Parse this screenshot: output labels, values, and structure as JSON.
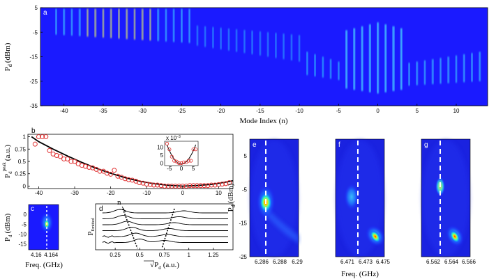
{
  "chart_data": [
    {
      "panel": "a",
      "type": "heatmap",
      "xlabel": "Mode Index (n)",
      "ylabel_main": "P",
      "ylabel_sub": "d",
      "ylabel_unit": "(dBm)",
      "xticks": [
        -40,
        -35,
        -30,
        -25,
        -20,
        -15,
        -10,
        -5,
        0,
        5,
        10
      ],
      "yticks": [
        5,
        -5,
        -15,
        -25,
        -35
      ],
      "xlim": [
        -43,
        14
      ],
      "ylim": [
        -35,
        5
      ],
      "background": "#1a1aff"
    },
    {
      "panel": "b",
      "type": "scatter",
      "ylabel_main": "P",
      "ylabel_sub": "d",
      "ylabel_sup": "peak",
      "ylabel_unit": "(a.u.)",
      "xticks": [
        -40,
        -30,
        -20,
        -10,
        0,
        10
      ],
      "yticks": [
        1,
        0.75,
        0.5,
        0.25,
        0
      ],
      "xlim": [
        -43,
        14
      ],
      "ylim": [
        -0.05,
        1.05
      ],
      "points_x": [
        -41,
        -40,
        -39,
        -38,
        -37,
        -36,
        -35,
        -34,
        -33,
        -32,
        -31,
        -30,
        -29,
        -28,
        -27,
        -26,
        -25,
        -24,
        -23,
        -22,
        -21,
        -20,
        -19,
        -18,
        -17,
        -16,
        -15,
        -14,
        -13,
        -12,
        -11,
        -10,
        -9,
        -8,
        -7,
        -6,
        -5,
        -4,
        -3,
        -2,
        -1,
        0,
        1,
        2,
        3,
        4,
        5,
        6,
        7,
        8,
        9,
        10,
        11,
        12,
        13
      ],
      "points_y": [
        0.85,
        1.0,
        1.0,
        1.0,
        0.72,
        0.65,
        0.62,
        0.6,
        0.55,
        0.55,
        0.5,
        0.5,
        0.45,
        0.42,
        0.4,
        0.38,
        0.37,
        0.34,
        0.3,
        0.3,
        0.26,
        0.24,
        0.32,
        0.2,
        0.18,
        0.15,
        0.13,
        0.12,
        0.1,
        0.07,
        0.06,
        0.04,
        0.03,
        0.02,
        0.02,
        0.01,
        0.0,
        0.0,
        0.0,
        0.0,
        0.0,
        0.0,
        0.0,
        0.01,
        0.01,
        0.01,
        0.01,
        0.01,
        0.01,
        0.02,
        0.02,
        0.03,
        0.04,
        0.05,
        0.07
      ],
      "fit_x": [
        -42,
        -40,
        -36,
        -32,
        -28,
        -24,
        -20,
        -16,
        -12,
        -8,
        -4,
        0,
        4,
        8,
        12,
        14
      ],
      "fit_y": [
        1.0,
        0.9,
        0.75,
        0.61,
        0.48,
        0.36,
        0.26,
        0.17,
        0.1,
        0.05,
        0.015,
        0.0,
        0.01,
        0.035,
        0.08,
        0.11
      ],
      "point_color": "#e03030"
    },
    {
      "panel": "b-inset",
      "type": "scatter",
      "sup_label": "x 10",
      "sup_exp": "−3",
      "xticks": [
        -5,
        0,
        5
      ],
      "yticks": [
        10,
        5,
        0
      ],
      "points_x": [
        -6,
        -5,
        -4,
        -3,
        -2,
        -1,
        0,
        1,
        2,
        3,
        4,
        5,
        6
      ],
      "points_y": [
        12.5,
        9,
        4.5,
        2,
        1.5,
        0.5,
        0.5,
        1,
        1,
        2,
        2,
        9,
        9
      ],
      "xlim": [
        -7,
        7
      ],
      "ylim": [
        -1,
        14
      ]
    },
    {
      "panel": "c",
      "type": "heatmap",
      "xlabel": "Freq. (GHz)",
      "ylabel_main": "P",
      "ylabel_sub": "d",
      "ylabel_unit": "(dBm)",
      "xticks": [
        4.16,
        4.164
      ],
      "yticks": [
        0,
        -5,
        -10,
        -15
      ],
      "xlim": [
        4.158,
        4.166
      ],
      "ylim": [
        -18,
        5
      ]
    },
    {
      "panel": "d",
      "type": "line",
      "xlabel_main": "P",
      "xlabel_sub": "d",
      "xlabel_unit": "(a.u.)",
      "ylabel_main": "P",
      "ylabel_sub": "Emitted",
      "annotation": "n",
      "xticks": [
        0.25,
        0.5,
        0.75,
        1,
        1.25
      ],
      "xlim": [
        0.05,
        1.45
      ],
      "series_count": 6
    },
    {
      "panel": "e",
      "type": "heatmap",
      "ylabel_main": "P",
      "ylabel_sub": "d",
      "ylabel_unit": "(dBm)",
      "xticks": [
        6.286,
        6.288,
        6.29
      ],
      "yticks": [
        5,
        -5,
        -15,
        -25
      ],
      "ylim": [
        -25,
        10
      ]
    },
    {
      "panel": "f",
      "type": "heatmap",
      "xlabel": "Freq. (GHz)",
      "xticks": [
        6.471,
        6.473,
        6.475
      ]
    },
    {
      "panel": "g",
      "type": "heatmap",
      "xticks": [
        6.562,
        6.564,
        6.566
      ]
    }
  ],
  "panel_labels": {
    "a": "a",
    "b": "b",
    "c": "c",
    "d": "d",
    "e": "e",
    "f": "f",
    "g": "g"
  }
}
